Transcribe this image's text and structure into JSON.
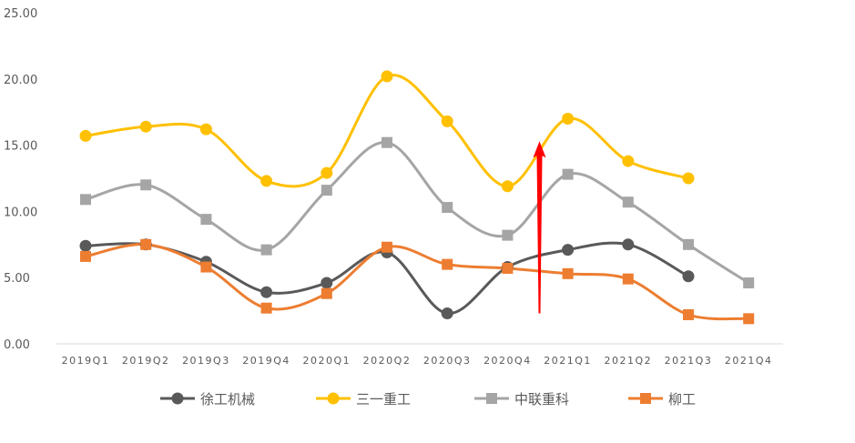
{
  "chart_data": {
    "type": "line",
    "smooth": true,
    "title": "",
    "xlabel": "",
    "ylabel": "",
    "ylim": [
      0,
      25
    ],
    "ytick_step": 5,
    "ytick_labels": [
      "0.00",
      "5.00",
      "10.00",
      "15.00",
      "20.00",
      "25.00"
    ],
    "grid": false,
    "legend_position": "bottom",
    "categories": [
      "2019Q1",
      "2019Q2",
      "2019Q3",
      "2019Q4",
      "2020Q1",
      "2020Q2",
      "2020Q3",
      "2020Q4",
      "2021Q1",
      "2021Q2",
      "2021Q3",
      "2021Q4"
    ],
    "series": [
      {
        "name": "徐工机械",
        "color": "#595959",
        "marker": "circle",
        "values": [
          7.4,
          7.5,
          6.2,
          3.9,
          4.6,
          6.9,
          2.3,
          5.8,
          7.1,
          7.5,
          5.1,
          null
        ]
      },
      {
        "name": "三一重工",
        "color": "#FFC000",
        "marker": "circle",
        "values": [
          15.7,
          16.4,
          16.2,
          12.3,
          12.9,
          20.2,
          16.8,
          11.9,
          17.0,
          13.8,
          12.5,
          null
        ]
      },
      {
        "name": "中联重科",
        "color": "#A5A5A5",
        "marker": "square",
        "values": [
          10.9,
          12.0,
          9.4,
          7.1,
          11.6,
          15.2,
          10.3,
          8.2,
          12.8,
          10.7,
          7.5,
          4.6
        ]
      },
      {
        "name": "柳工",
        "color": "#ED7D31",
        "marker": "square",
        "values": [
          6.6,
          7.5,
          5.8,
          2.7,
          3.8,
          7.3,
          6.0,
          5.7,
          5.3,
          4.9,
          2.2,
          1.9
        ]
      }
    ],
    "annotation": {
      "type": "arrow",
      "color": "#FF0000",
      "from_y": 2.3,
      "to_y": 15.3,
      "between": [
        "2020Q4",
        "2021Q1"
      ]
    }
  }
}
